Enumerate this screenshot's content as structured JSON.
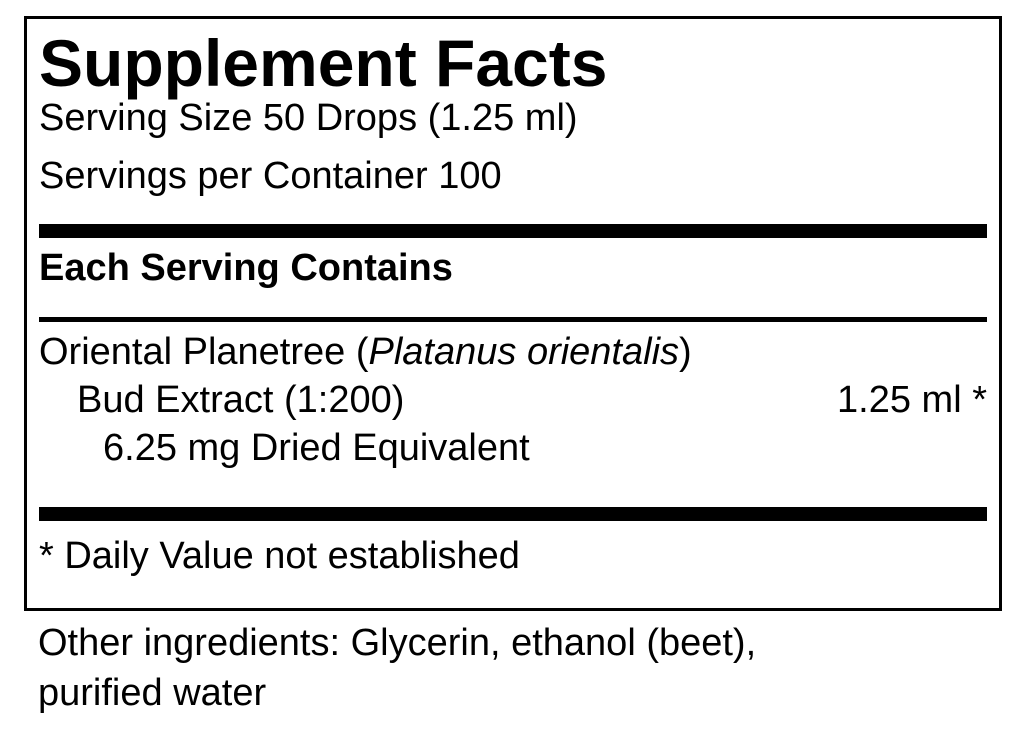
{
  "title": "Supplement Facts",
  "serving_size": "Serving Size 50 Drops (1.25 ml)",
  "servings_per_container": "Servings per Container 100",
  "header": "Each Serving Contains",
  "ingredient": {
    "name_prefix": "Oriental Planetree (",
    "latin": "Platanus orientalis",
    "name_suffix": ")",
    "line2": "Bud Extract (1:200)",
    "amount": "1.25 ml *",
    "line3": "6.25 mg Dried Equivalent"
  },
  "footnote": "* Daily Value not established",
  "other_ingredients": [
    "Other ingredients: Glycerin, ethanol (beet),",
    "purified water"
  ]
}
